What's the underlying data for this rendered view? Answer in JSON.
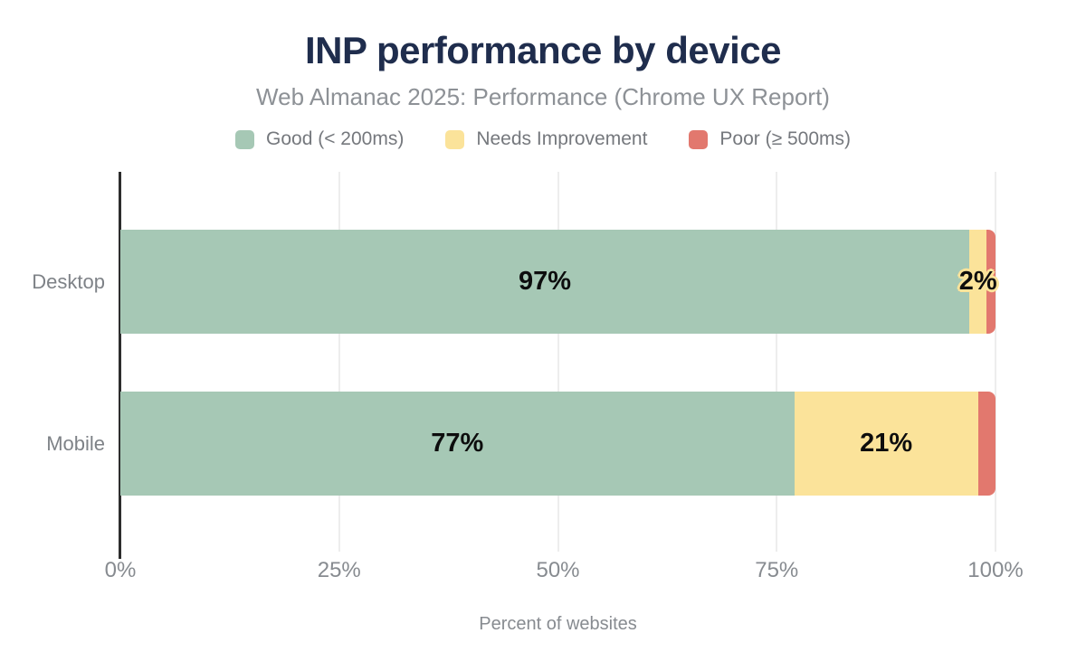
{
  "title": "INP performance by device",
  "subtitle": "Web Almanac 2025: Performance (Chrome UX Report)",
  "legend": [
    {
      "label": "Good (< 200ms)",
      "color": "#a6c8b5"
    },
    {
      "label": "Needs Improvement",
      "color": "#fbe39a"
    },
    {
      "label": "Poor (≥ 500ms)",
      "color": "#e2786e"
    }
  ],
  "chart_data": {
    "type": "bar",
    "orientation": "horizontal",
    "stacked": true,
    "title": "INP performance by device",
    "subtitle": "Web Almanac 2025: Performance (Chrome UX Report)",
    "xlabel": "Percent of websites",
    "xlim": [
      0,
      100
    ],
    "x_ticks": [
      "0%",
      "25%",
      "50%",
      "75%",
      "100%"
    ],
    "grid": true,
    "legend_position": "top",
    "categories": [
      "Desktop",
      "Mobile"
    ],
    "series": [
      {
        "name": "Good (< 200ms)",
        "color": "#a6c8b5",
        "values": [
          97,
          77
        ],
        "labels": [
          "97%",
          "77%"
        ]
      },
      {
        "name": "Needs Improvement",
        "color": "#fbe39a",
        "values": [
          2,
          21
        ],
        "labels": [
          "2%",
          "21%"
        ]
      },
      {
        "name": "Poor (≥ 500ms)",
        "color": "#e2786e",
        "values": [
          1,
          2
        ],
        "labels": [
          "",
          ""
        ]
      }
    ]
  },
  "colors": {
    "title_text": "#1f2d4d",
    "subtitle_text": "#8d9196",
    "axis_text": "#878b90",
    "category_text": "#7e8287",
    "legend_text": "#75787d",
    "axis_line": "#2d2d2d",
    "gridline": "#ededed",
    "bar_label_text": "#0d0d0d",
    "background": "#ffffff"
  }
}
